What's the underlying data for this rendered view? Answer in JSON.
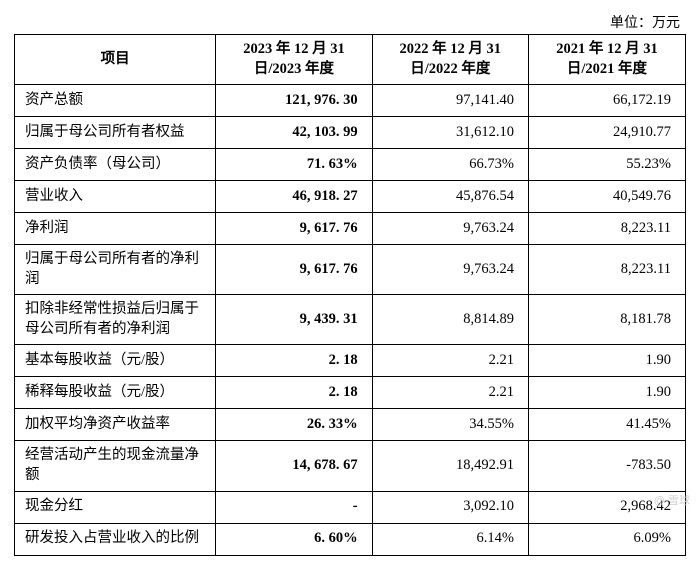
{
  "unit_label": "单位：万元",
  "columns": [
    {
      "label": "项目",
      "width_class": "col0"
    },
    {
      "label": "2023 年 12 月 31 日/2023 年度",
      "width_class": "col1"
    },
    {
      "label": "2022 年 12 月 31 日/2022 年度",
      "width_class": "col2"
    },
    {
      "label": "2021 年 12 月 31日/2021 年度",
      "width_class": "col3"
    }
  ],
  "rows": [
    {
      "label": "资产总额",
      "c2023": "121, 976. 30",
      "c2022": "97,141.40",
      "c2021": "66,172.19"
    },
    {
      "label": "归属于母公司所有者权益",
      "c2023": "42, 103. 99",
      "c2022": "31,612.10",
      "c2021": "24,910.77"
    },
    {
      "label": "资产负债率（母公司）",
      "c2023": "71. 63%",
      "c2022": "66.73%",
      "c2021": "55.23%"
    },
    {
      "label": "营业收入",
      "c2023": "46, 918. 27",
      "c2022": "45,876.54",
      "c2021": "40,549.76"
    },
    {
      "label": "净利润",
      "c2023": "9, 617. 76",
      "c2022": "9,763.24",
      "c2021": "8,223.11"
    },
    {
      "label": "归属于母公司所有者的净利润",
      "c2023": "9, 617. 76",
      "c2022": "9,763.24",
      "c2021": "8,223.11"
    },
    {
      "label": "扣除非经常性损益后归属于母公司所有者的净利润",
      "c2023": "9, 439. 31",
      "c2022": "8,814.89",
      "c2021": "8,181.78"
    },
    {
      "label": "基本每股收益（元/股）",
      "c2023": "2. 18",
      "c2022": "2.21",
      "c2021": "1.90"
    },
    {
      "label": "稀释每股收益（元/股）",
      "c2023": "2. 18",
      "c2022": "2.21",
      "c2021": "1.90"
    },
    {
      "label": "加权平均净资产收益率",
      "c2023": "26. 33%",
      "c2022": "34.55%",
      "c2021": "41.45%"
    },
    {
      "label": "经营活动产生的现金流量净额",
      "c2023": "14, 678. 67",
      "c2022": "18,492.91",
      "c2021": "-783.50"
    },
    {
      "label": "现金分红",
      "c2023": "-",
      "c2022": "3,092.10",
      "c2021": "2,968.42"
    },
    {
      "label": "研发投入占营业收入的比例",
      "c2023": "6. 60%",
      "c2022": "6.14%",
      "c2021": "6.09%"
    }
  ],
  "styling": {
    "background_color": "#ffffff",
    "text_color": "#000000",
    "border_color": "#000000",
    "header_font_weight": "bold",
    "col2023_font_weight": "bold",
    "body_font_size_pt": 11,
    "font_family": "SimSun / serif",
    "watermark_color": "#d0d0d0"
  },
  "watermark": "@ 雪球"
}
